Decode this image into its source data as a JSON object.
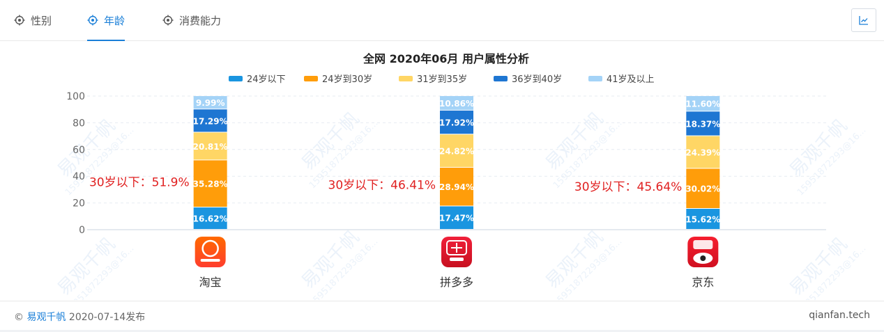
{
  "tabs": [
    {
      "label": "性别",
      "icon": "target-icon",
      "active": false
    },
    {
      "label": "年龄",
      "icon": "target-icon",
      "active": true
    },
    {
      "label": "消费能力",
      "icon": "target-icon",
      "active": false
    }
  ],
  "toolbar": {
    "chart_toggle_icon": "line-chart-icon"
  },
  "colors": {
    "accent": "#1a7fd8",
    "annotation": "#e02020"
  },
  "watermark": {
    "brand": "易观千帆",
    "text": "15951872293@16..."
  },
  "footer": {
    "copyright": "©",
    "brand": "易观千帆",
    "published": "2020-07-14发布",
    "site": "qianfan.tech"
  },
  "chart_data": {
    "type": "bar",
    "stacked": true,
    "title": "全网 2020年06月 用户属性分析",
    "categories": [
      "淘宝",
      "拼多多",
      "京东"
    ],
    "category_icons": [
      "taobao-app-icon",
      "pinduoduo-app-icon",
      "jd-app-icon"
    ],
    "ylim": [
      0,
      100
    ],
    "yticks": [
      "0",
      "20",
      "40",
      "60",
      "80",
      "100"
    ],
    "grid": true,
    "legend_position": "top",
    "series": [
      {
        "name": "24岁以下",
        "color": "#1a95e0",
        "values": [
          16.62,
          17.47,
          15.62
        ],
        "labels": [
          "16.62%",
          "17.47%",
          "15.62%"
        ]
      },
      {
        "name": "24岁到30岁",
        "color": "#ff9d0a",
        "values": [
          35.28,
          28.94,
          30.02
        ],
        "labels": [
          "35.28%",
          "28.94%",
          "30.02%"
        ]
      },
      {
        "name": "31岁到35岁",
        "color": "#ffd665",
        "values": [
          20.81,
          24.82,
          24.39
        ],
        "labels": [
          "20.81%",
          "24.82%",
          "24.39%"
        ]
      },
      {
        "name": "36岁到40岁",
        "color": "#1e76d2",
        "values": [
          17.29,
          17.92,
          18.37
        ],
        "labels": [
          "17.29%",
          "17.92%",
          "18.37%"
        ]
      },
      {
        "name": "41岁及以上",
        "color": "#a4d3f7",
        "values": [
          9.99,
          10.86,
          11.6
        ],
        "labels": [
          "9.99%",
          "10.86%",
          "11.60%"
        ]
      }
    ],
    "annotations": [
      "30岁以下：51.9%",
      "30岁以下：46.41%",
      "30岁以下：45.64%"
    ]
  }
}
